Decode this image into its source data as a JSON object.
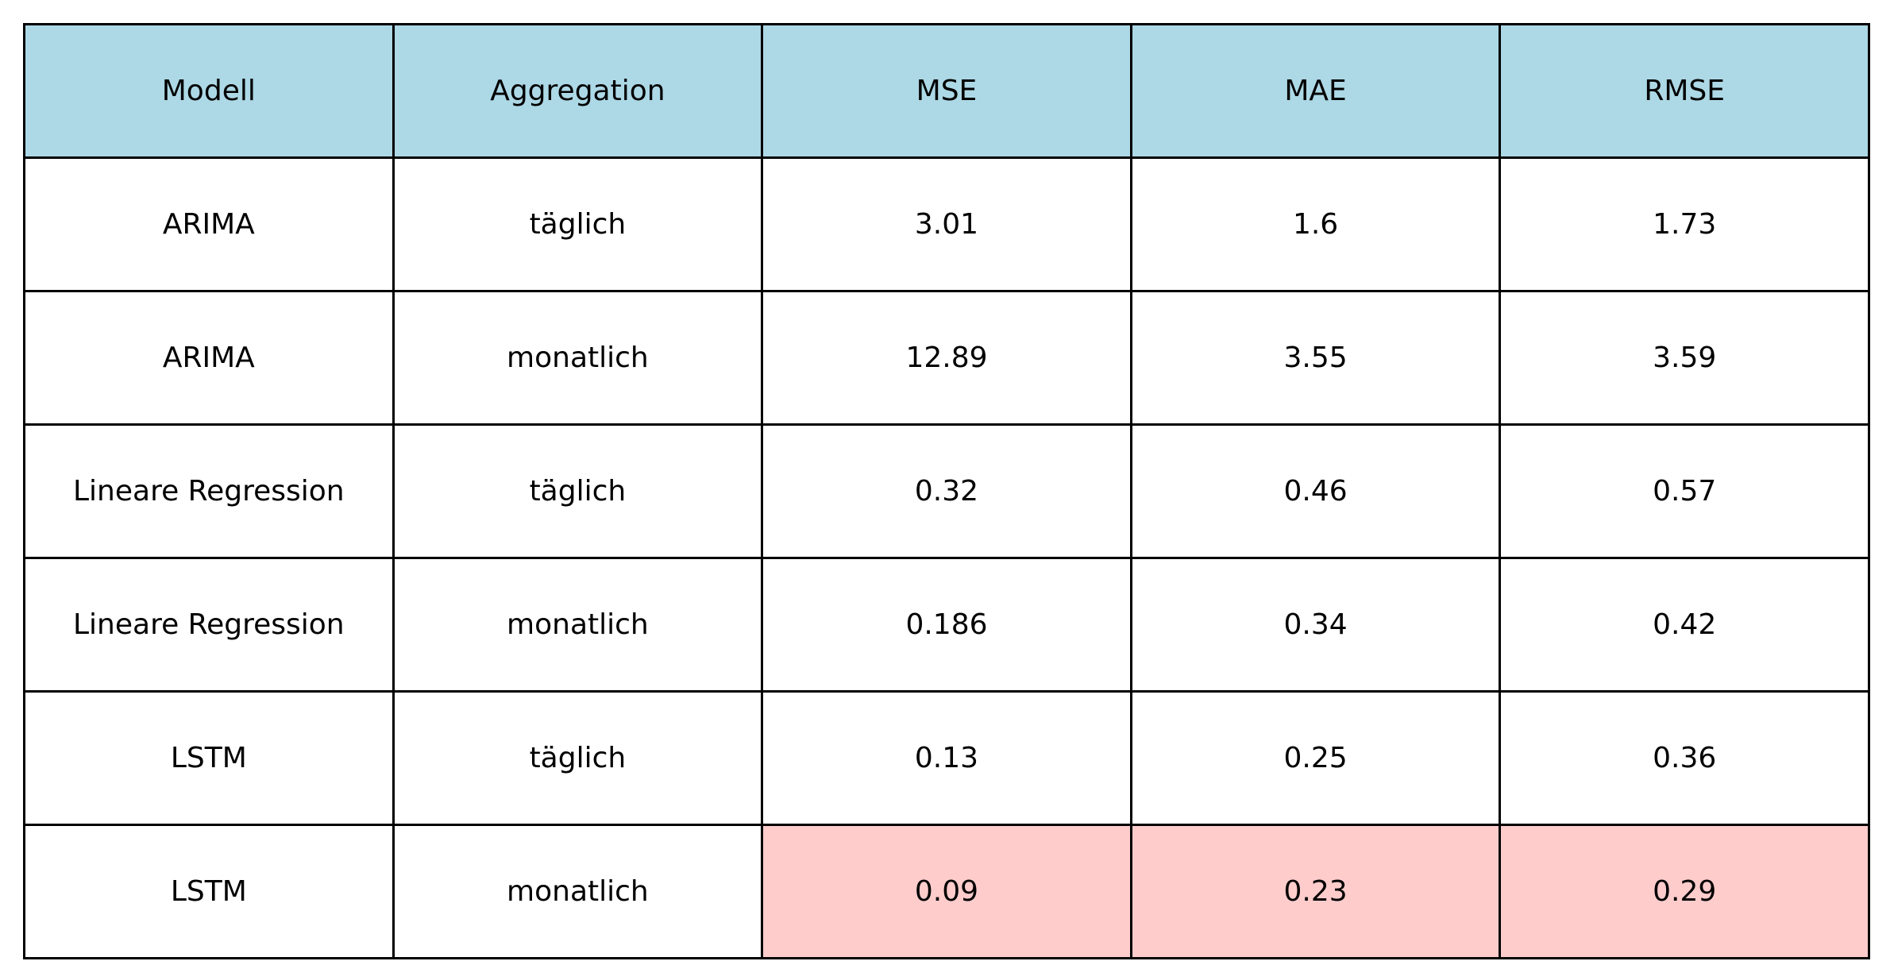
{
  "chart_data": {
    "type": "table",
    "columns": [
      "Modell",
      "Aggregation",
      "MSE",
      "MAE",
      "RMSE"
    ],
    "rows": [
      [
        "ARIMA",
        "täglich",
        "3.01",
        "1.6",
        "1.73"
      ],
      [
        "ARIMA",
        "monatlich",
        "12.89",
        "3.55",
        "3.59"
      ],
      [
        "Lineare Regression",
        "täglich",
        "0.32",
        "0.46",
        "0.57"
      ],
      [
        "Lineare Regression",
        "monatlich",
        "0.186",
        "0.34",
        "0.42"
      ],
      [
        "LSTM",
        "täglich",
        "0.13",
        "0.25",
        "0.36"
      ],
      [
        "LSTM",
        "monatlich",
        "0.09",
        "0.23",
        "0.29"
      ]
    ],
    "highlighted_cells": [
      [
        5,
        2
      ],
      [
        5,
        3
      ],
      [
        5,
        4
      ]
    ],
    "colors": {
      "header_background": "#add8e6",
      "highlight_background": "#ffcccc",
      "border": "#000000",
      "cell_background": "#ffffff"
    }
  }
}
